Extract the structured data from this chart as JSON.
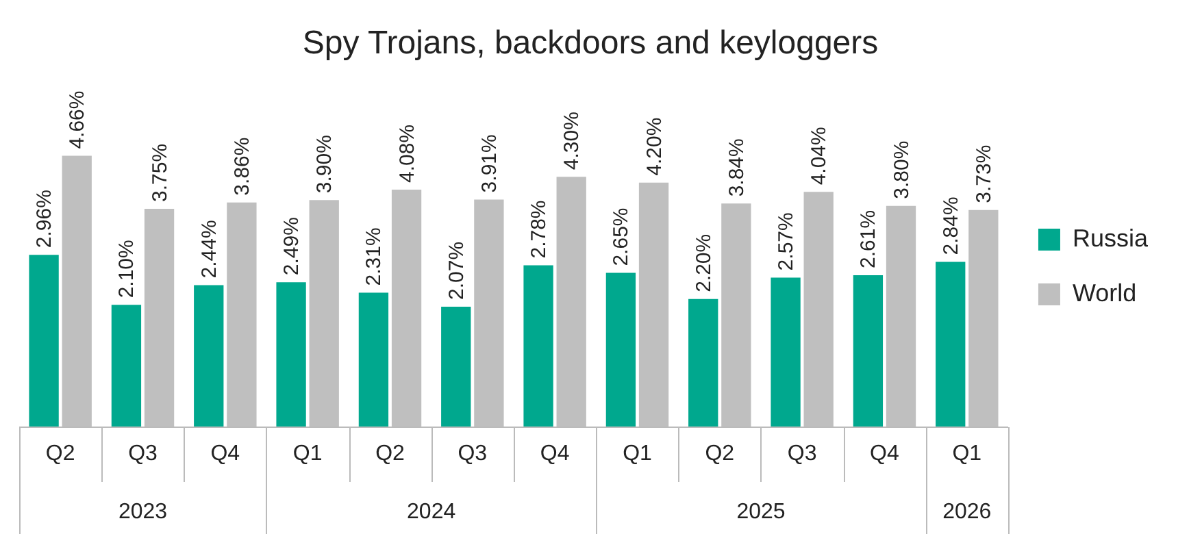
{
  "chart_data": {
    "type": "bar",
    "title": "Spy Trojans, backdoors and keyloggers",
    "categories": [
      "Q2",
      "Q3",
      "Q4",
      "Q1",
      "Q2",
      "Q3",
      "Q4",
      "Q1",
      "Q2",
      "Q3",
      "Q4",
      "Q1"
    ],
    "series": [
      {
        "name": "Russia",
        "color": "#00a88e",
        "values": [
          2.96,
          2.1,
          2.44,
          2.49,
          2.31,
          2.07,
          2.78,
          2.65,
          2.2,
          2.57,
          2.61,
          2.84
        ],
        "value_labels": [
          "2.96%",
          "2.10%",
          "2.44%",
          "2.49%",
          "2.31%",
          "2.07%",
          "2.78%",
          "2.65%",
          "2.20%",
          "2.57%",
          "2.61%",
          "2.84%"
        ]
      },
      {
        "name": "World",
        "color": "#bfbfbf",
        "values": [
          4.66,
          3.75,
          3.86,
          3.9,
          4.08,
          3.91,
          4.3,
          4.2,
          3.84,
          4.04,
          3.8,
          3.73
        ],
        "value_labels": [
          "4.66%",
          "3.75%",
          "3.86%",
          "3.90%",
          "4.08%",
          "3.91%",
          "4.30%",
          "4.20%",
          "3.84%",
          "4.04%",
          "3.80%",
          "3.73%"
        ]
      }
    ],
    "annotations": [
      "2023",
      "2024",
      "2025",
      "2026"
    ],
    "legend": "right",
    "grid": false
  }
}
